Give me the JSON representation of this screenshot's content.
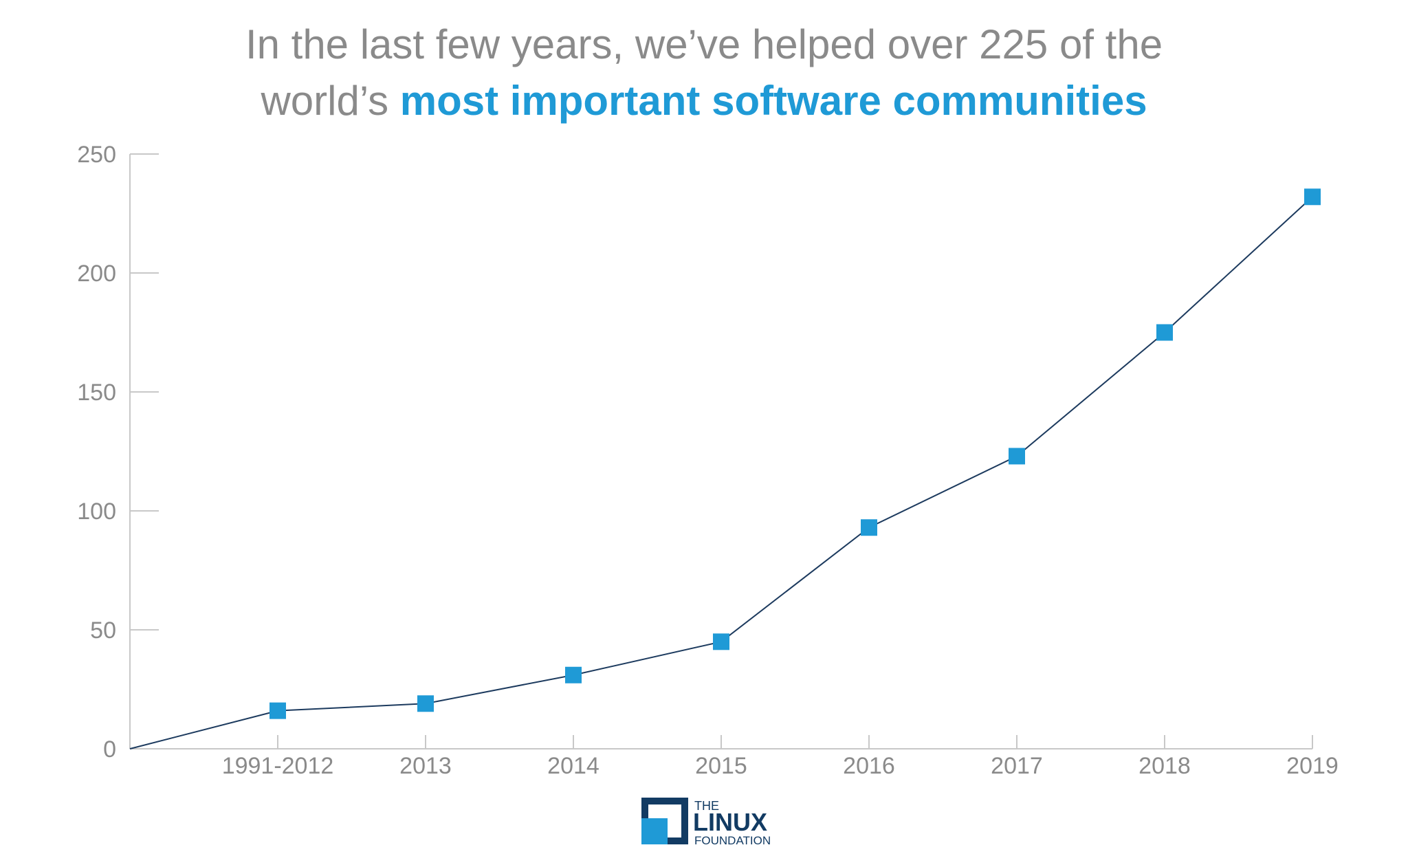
{
  "chart_data": {
    "type": "line",
    "title": {
      "line1": "In the last few years, we’ve helped over 225 of the",
      "line2": "world’s ",
      "highlight": "most important software communities"
    },
    "categories": [
      null,
      "1991-2012",
      "2013",
      "2014",
      "2015",
      "2016",
      "2017",
      "2018",
      "2019"
    ],
    "values": [
      0,
      16,
      19,
      31,
      45,
      93,
      123,
      175,
      232
    ],
    "color": "#1f9ad6",
    "line_color": "#1c3a5e",
    "ylim": [
      0,
      250
    ],
    "yticks": [
      0,
      50,
      100,
      150,
      200,
      250
    ],
    "grid": false,
    "logo": {
      "line1": "THE",
      "line2": "LINUX",
      "line3": "FOUNDATION"
    }
  }
}
